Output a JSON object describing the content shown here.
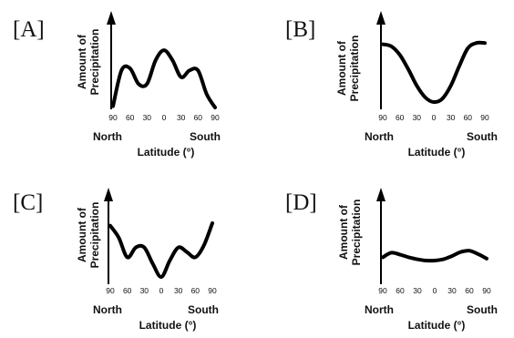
{
  "chart_data": [
    {
      "type": "line",
      "panel_label": "[A]",
      "ylabel_line1": "Amount of",
      "ylabel_line2": "Precipitation",
      "xlabel": "Latitude (°)",
      "x_tick_labels": [
        "90",
        "60",
        "30",
        "0",
        "30",
        "60",
        "90"
      ],
      "x_end_labels": [
        "North",
        "South"
      ],
      "x": [
        -90,
        -75,
        -60,
        -45,
        -30,
        -15,
        0,
        15,
        30,
        45,
        60,
        75,
        90
      ],
      "y": [
        0.02,
        0.55,
        0.58,
        0.35,
        0.35,
        0.7,
        0.85,
        0.7,
        0.45,
        0.55,
        0.55,
        0.2,
        0.0
      ],
      "xlim": [
        -90,
        90
      ],
      "ylim": [
        0,
        1
      ]
    },
    {
      "type": "line",
      "panel_label": "[B]",
      "ylabel_line1": "Amount of",
      "ylabel_line2": "Precipitation",
      "xlabel": "Latitude (°)",
      "x_tick_labels": [
        "90",
        "60",
        "30",
        "0",
        "30",
        "60",
        "90"
      ],
      "x_end_labels": [
        "North",
        "South"
      ],
      "x": [
        -90,
        -75,
        -60,
        -45,
        -30,
        -15,
        0,
        15,
        30,
        45,
        60,
        75,
        90
      ],
      "y": [
        0.88,
        0.85,
        0.72,
        0.5,
        0.25,
        0.07,
        0.0,
        0.05,
        0.25,
        0.55,
        0.82,
        0.9,
        0.9
      ],
      "xlim": [
        -90,
        90
      ],
      "ylim": [
        0,
        1
      ]
    },
    {
      "type": "line",
      "panel_label": "[C]",
      "ylabel_line1": "Amount of",
      "ylabel_line2": "Precipitation",
      "xlabel": "Latitude (°)",
      "x_tick_labels": [
        "90",
        "60",
        "30",
        "0",
        "30",
        "60",
        "90"
      ],
      "x_end_labels": [
        "North",
        "South"
      ],
      "x": [
        -90,
        -75,
        -60,
        -45,
        -30,
        -15,
        0,
        15,
        30,
        45,
        60,
        75,
        90
      ],
      "y": [
        0.78,
        0.6,
        0.3,
        0.45,
        0.45,
        0.2,
        0.0,
        0.25,
        0.45,
        0.38,
        0.3,
        0.48,
        0.82
      ],
      "xlim": [
        -90,
        90
      ],
      "ylim": [
        0,
        1
      ]
    },
    {
      "type": "line",
      "panel_label": "[D]",
      "ylabel_line1": "Amount of",
      "ylabel_line2": "Precipitation",
      "xlabel": "Latitude (°)",
      "x_tick_labels": [
        "90",
        "60",
        "30",
        "0",
        "30",
        "60",
        "90"
      ],
      "x_end_labels": [
        "North",
        "South"
      ],
      "x": [
        -90,
        -75,
        -60,
        -45,
        -30,
        -15,
        0,
        15,
        30,
        45,
        60,
        75,
        90
      ],
      "y": [
        0.3,
        0.37,
        0.34,
        0.3,
        0.27,
        0.25,
        0.25,
        0.27,
        0.32,
        0.38,
        0.4,
        0.35,
        0.28
      ],
      "xlim": [
        -90,
        90
      ],
      "ylim": [
        0,
        1
      ]
    }
  ]
}
